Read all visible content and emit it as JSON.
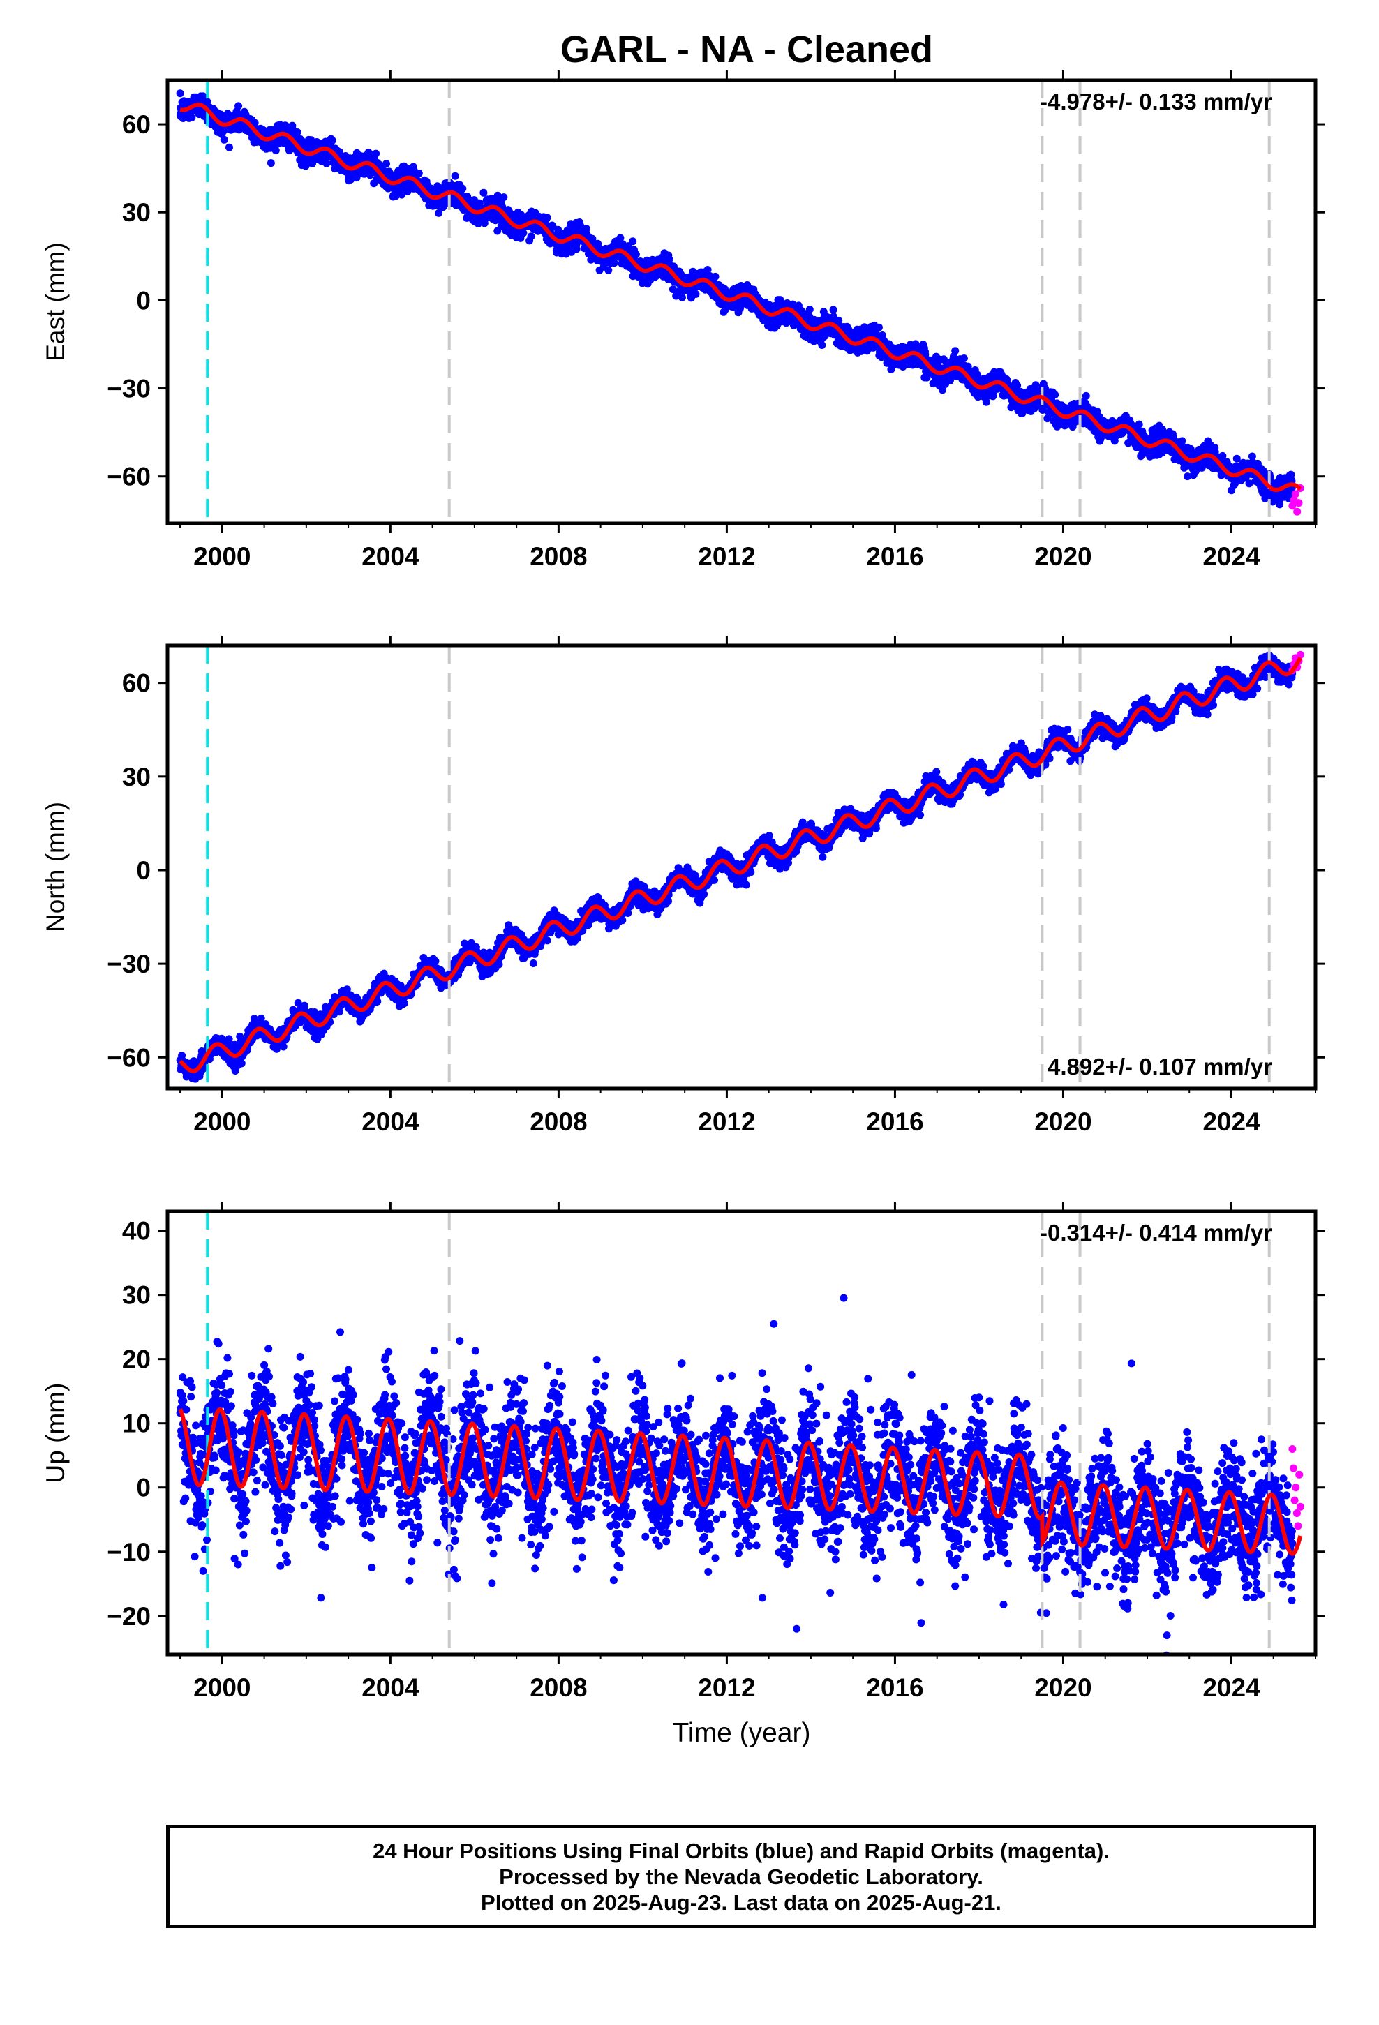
{
  "title": "GARL  - NA - Cleaned",
  "xlabel": "Time (year)",
  "footer": {
    "line1": "24 Hour Positions Using Final Orbits (blue) and Rapid Orbits (magenta).",
    "line2": "Processed by the Nevada Geodetic Laboratory.",
    "line3": "Plotted on 2025-Aug-23. Last data on 2025-Aug-21."
  },
  "colors": {
    "final": "#0000ff",
    "rapid": "#ff00ff",
    "model": "#ff0000",
    "equipment": "#c8c8c8",
    "earthquake": "#00e5e5"
  },
  "chart_data": [
    {
      "type": "scatter",
      "ylabel": "East (mm)",
      "rate_label": "-4.978+/- 0.133 mm/yr",
      "rate_position": "top-right",
      "xlim": [
        1998.7,
        2026.0
      ],
      "ylim": [
        -76,
        75
      ],
      "x_ticks": [
        2000,
        2004,
        2008,
        2012,
        2016,
        2020,
        2024
      ],
      "y_ticks": [
        -60,
        -30,
        0,
        30,
        60
      ],
      "x_tick_labels": [
        "2000",
        "2004",
        "2008",
        "2012",
        "2016",
        "2020",
        "2024"
      ],
      "y_tick_labels": [
        "−60",
        "−30",
        "0",
        "30",
        "60"
      ],
      "trend": {
        "t0": 1999.0,
        "y0": 67,
        "rate": -4.978
      },
      "seasonal": {
        "amplitude": 2.0,
        "amplitude_end": 2.0,
        "phase_year": 0.25
      },
      "noise_sd": 2.0,
      "offsets": [],
      "range": [
        1999.0,
        2025.64
      ],
      "rapid": {
        "from": 2025.45,
        "to": 2025.64,
        "y": [
          -70,
          -68,
          -66,
          -72,
          -69,
          -64
        ]
      },
      "equipment_changes": [
        2005.4,
        2019.5,
        2020.4,
        2024.9
      ],
      "earthquakes": [
        1999.65
      ]
    },
    {
      "type": "scatter",
      "ylabel": "North (mm)",
      "rate_label": "4.892+/- 0.107 mm/yr",
      "rate_position": "bottom-right",
      "xlim": [
        1998.7,
        2026.0
      ],
      "ylim": [
        -70,
        72
      ],
      "x_ticks": [
        2000,
        2004,
        2008,
        2012,
        2016,
        2020,
        2024
      ],
      "y_ticks": [
        -60,
        -30,
        0,
        30,
        60
      ],
      "x_tick_labels": [
        "2000",
        "2004",
        "2008",
        "2012",
        "2016",
        "2020",
        "2024"
      ],
      "y_tick_labels": [
        "−60",
        "−30",
        "0",
        "30",
        "60"
      ],
      "trend": {
        "t0": 1999.0,
        "y0": -63,
        "rate": 4.892
      },
      "seasonal": {
        "amplitude": 3.0,
        "amplitude_end": 3.0,
        "phase_year": 0.6
      },
      "noise_sd": 1.5,
      "offsets": [],
      "range": [
        1999.0,
        2025.64
      ],
      "rapid": {
        "from": 2025.45,
        "to": 2025.64,
        "y": [
          64,
          66,
          68,
          65,
          67,
          69
        ]
      },
      "equipment_changes": [
        2005.4,
        2019.5,
        2020.4,
        2024.9
      ],
      "earthquakes": [
        1999.65
      ]
    },
    {
      "type": "scatter",
      "ylabel": "Up (mm)",
      "rate_label": "-0.314+/- 0.414 mm/yr",
      "rate_position": "top-right",
      "xlim": [
        1998.7,
        2026.0
      ],
      "ylim": [
        -26,
        43
      ],
      "x_ticks": [
        2000,
        2004,
        2008,
        2012,
        2016,
        2020,
        2024
      ],
      "y_ticks": [
        -20,
        -10,
        0,
        10,
        20,
        30,
        40
      ],
      "x_tick_labels": [
        "2000",
        "2004",
        "2008",
        "2012",
        "2016",
        "2020",
        "2024"
      ],
      "y_tick_labels": [
        "−20",
        "−10",
        "0",
        "10",
        "20",
        "30",
        "40"
      ],
      "trend": {
        "t0": 1999.0,
        "y0": 6.5,
        "rate": -0.314
      },
      "seasonal": {
        "amplitude": 6.0,
        "amplitude_end": 4.5,
        "phase_year": 0.7
      },
      "noise_sd": 4.5,
      "offsets": [
        {
          "at": 2019.5,
          "value": -4.0
        }
      ],
      "range": [
        1999.0,
        2025.64
      ],
      "rapid": {
        "from": 2025.45,
        "to": 2025.64,
        "y": [
          6,
          3,
          -2,
          0,
          -4,
          -6,
          2,
          -3
        ]
      },
      "equipment_changes": [
        2005.4,
        2019.5,
        2020.4,
        2024.9
      ],
      "earthquakes": [
        1999.65
      ]
    }
  ]
}
